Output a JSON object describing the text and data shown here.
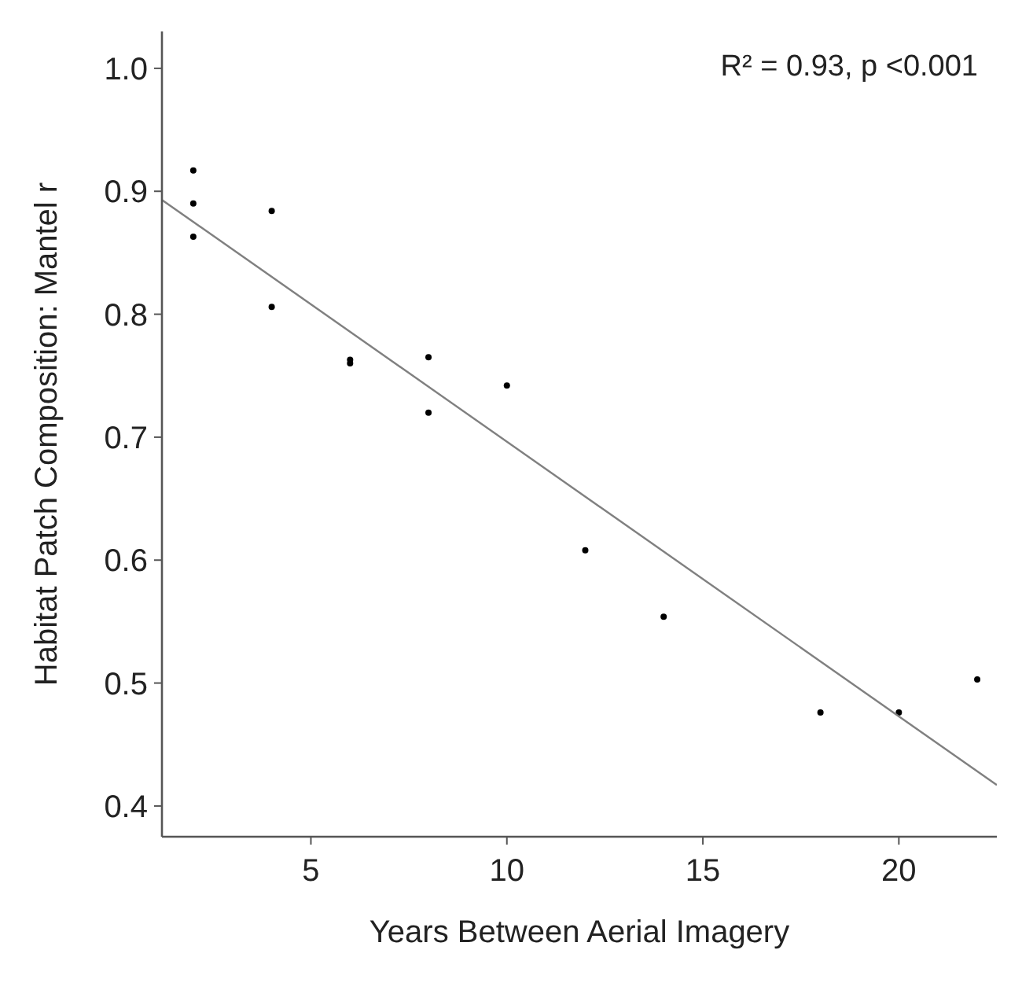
{
  "chart_data": {
    "type": "scatter",
    "xlabel": "Years Between Aerial Imagery",
    "ylabel": "Habitat Patch Composition: Mantel r",
    "xlim": [
      1.2,
      22.5
    ],
    "ylim": [
      0.375,
      1.03
    ],
    "xticks": [
      5,
      10,
      15,
      20
    ],
    "yticks": [
      {
        "value": 0.4,
        "label": "0.4"
      },
      {
        "value": 0.5,
        "label": "0.5"
      },
      {
        "value": 0.6,
        "label": "0.6"
      },
      {
        "value": 0.7,
        "label": "0.7"
      },
      {
        "value": 0.8,
        "label": "0.8"
      },
      {
        "value": 0.9,
        "label": "0.9"
      },
      {
        "value": 1.0,
        "label": "1.0"
      }
    ],
    "annotations": [
      "R² = 0.93, p <0.001"
    ],
    "grid": false,
    "series": [
      {
        "color": "#000000",
        "marker": "circle",
        "x": [
          2,
          2,
          2,
          4,
          4,
          6,
          6,
          8,
          8,
          10,
          12,
          14,
          18,
          20,
          22
        ],
        "values": [
          0.917,
          0.89,
          0.863,
          0.884,
          0.806,
          0.763,
          0.76,
          0.765,
          0.72,
          0.742,
          0.608,
          0.554,
          0.476,
          0.476,
          0.503
        ]
      },
      {
        "type": "line",
        "color": "#808080",
        "x": [
          1.2,
          22.5
        ],
        "values": [
          0.893,
          0.417
        ],
        "line_style": "solid"
      }
    ]
  }
}
